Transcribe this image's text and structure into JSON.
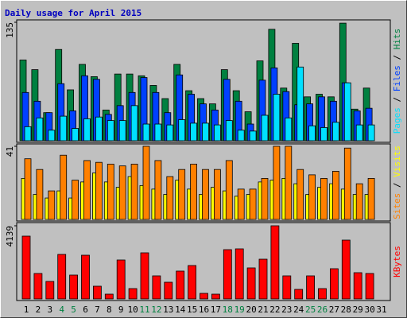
{
  "title": "Daily usage for April 2015",
  "legend_separator": " / ",
  "chart_data": [
    {
      "type": "bar",
      "ylim": [
        0,
        135
      ],
      "yticks": [
        135
      ],
      "series": [
        {
          "name": "Hits",
          "color": "#008040",
          "values": [
            92,
            81,
            32,
            104,
            58,
            87,
            73,
            35,
            76,
            76,
            74,
            63,
            48,
            87,
            57,
            48,
            42,
            81,
            57,
            33,
            91,
            127,
            60,
            111,
            50,
            53,
            50,
            134,
            36,
            60,
            0
          ]
        },
        {
          "name": "Files",
          "color": "#0040ff",
          "values": [
            55,
            45,
            32,
            65,
            34,
            74,
            70,
            30,
            40,
            55,
            72,
            55,
            32,
            75,
            53,
            42,
            35,
            70,
            45,
            19,
            69,
            83,
            56,
            41,
            42,
            50,
            45,
            66,
            34,
            37,
            0
          ]
        },
        {
          "name": "Pages",
          "color": "#00e0ff",
          "values": [
            16,
            26,
            12,
            28,
            14,
            25,
            27,
            23,
            23,
            40,
            19,
            19,
            18,
            24,
            20,
            20,
            18,
            23,
            12,
            11,
            29,
            53,
            26,
            84,
            17,
            15,
            21,
            66,
            18,
            18,
            0
          ]
        }
      ]
    },
    {
      "type": "bar",
      "ylim": [
        0,
        41
      ],
      "yticks": [
        41
      ],
      "series": [
        {
          "name": "Visits",
          "color": "#ffff00",
          "values": [
            23,
            14,
            12,
            16,
            12,
            21,
            26,
            21,
            18,
            24,
            19,
            17,
            14,
            22,
            17,
            14,
            18,
            16,
            13,
            14,
            21,
            22,
            23,
            20,
            14,
            18,
            20,
            17,
            14,
            14,
            0
          ]
        },
        {
          "name": "Sites",
          "color": "#ff8000",
          "values": [
            34,
            28,
            16,
            36,
            22,
            33,
            32,
            31,
            30,
            31,
            41,
            33,
            24,
            28,
            31,
            28,
            28,
            33,
            17,
            17,
            23,
            41,
            41,
            28,
            25,
            23,
            27,
            40,
            20,
            23,
            0
          ]
        }
      ]
    },
    {
      "type": "bar",
      "ylim": [
        0,
        4139
      ],
      "yticks": [
        4139
      ],
      "categories": [
        "1",
        "2",
        "3",
        "4",
        "5",
        "6",
        "7",
        "8",
        "9",
        "10",
        "11",
        "12",
        "13",
        "14",
        "15",
        "16",
        "17",
        "18",
        "19",
        "20",
        "21",
        "22",
        "23",
        "24",
        "25",
        "26",
        "27",
        "28",
        "29",
        "30",
        "31"
      ],
      "category_colors": [
        "#000000",
        "#000000",
        "#000000",
        "#008040",
        "#008040",
        "#000000",
        "#000000",
        "#000000",
        "#000000",
        "#000000",
        "#008040",
        "#008040",
        "#000000",
        "#000000",
        "#000000",
        "#000000",
        "#000000",
        "#008040",
        "#008040",
        "#000000",
        "#000000",
        "#000000",
        "#000000",
        "#000000",
        "#008040",
        "#008040",
        "#000000",
        "#000000",
        "#000000",
        "#000000",
        "#000000"
      ],
      "series": [
        {
          "name": "KBytes",
          "color": "#ff0000",
          "values": [
            3554,
            1440,
            990,
            2519,
            1350,
            2474,
            720,
            270,
            2204,
            585,
            2609,
            1305,
            945,
            1575,
            1890,
            315,
            270,
            2789,
            2834,
            1755,
            2249,
            4139,
            1305,
            540,
            1305,
            585,
            1710,
            3329,
            1485,
            1440,
            0
          ]
        }
      ]
    }
  ]
}
